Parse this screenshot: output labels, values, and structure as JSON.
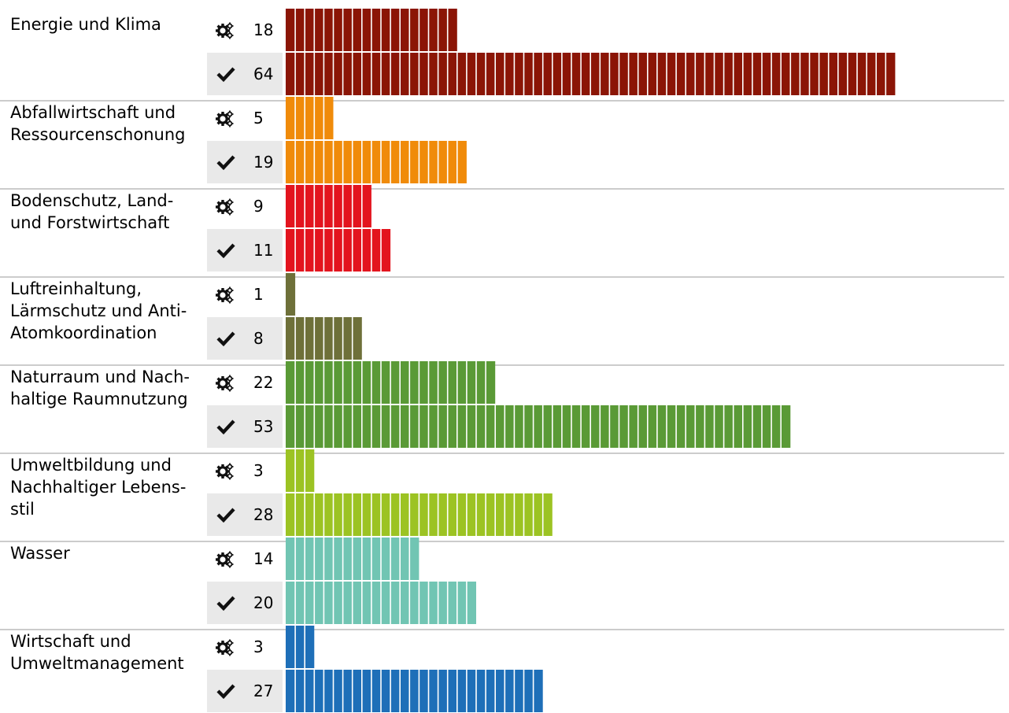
{
  "chart_data": {
    "type": "bar",
    "orientation": "horizontal",
    "title": "",
    "xlabel": "",
    "ylabel": "",
    "legend": "none",
    "grid": false,
    "bar_style": "segmented, one segment per unit",
    "icons": {
      "planned": "gears-icon",
      "done": "checkmark-icon"
    },
    "categories": [
      {
        "label": [
          "Energie und Klima"
        ],
        "color": "#8b1506",
        "planned": 18,
        "done": 64
      },
      {
        "label": [
          "Abfallwirtschaft und",
          "Ressourcenschonung"
        ],
        "color": "#f08b0a",
        "planned": 5,
        "done": 19
      },
      {
        "label": [
          "Bodenschutz, Land-",
          "und Forstwirtschaft"
        ],
        "color": "#e3141e",
        "planned": 9,
        "done": 11
      },
      {
        "label": [
          "Luftreinhaltung,",
          "Lärmschutz und Anti-",
          "Atomkoordination"
        ],
        "color": "#6e7039",
        "planned": 1,
        "done": 8
      },
      {
        "label": [
          "Naturraum und Nach-",
          "haltige Raumnutzung"
        ],
        "color": "#5a9a36",
        "planned": 22,
        "done": 53
      },
      {
        "label": [
          "Umweltbildung und",
          "Nachhaltiger Lebens-",
          "stil"
        ],
        "color": "#9cc323",
        "planned": 3,
        "done": 28
      },
      {
        "label": [
          "Wasser"
        ],
        "color": "#71c5b3",
        "planned": 14,
        "done": 20
      },
      {
        "label": [
          "Wirtschaft und",
          "Umweltmanagement"
        ],
        "color": "#1e6fb8",
        "planned": 3,
        "done": 27
      }
    ]
  }
}
